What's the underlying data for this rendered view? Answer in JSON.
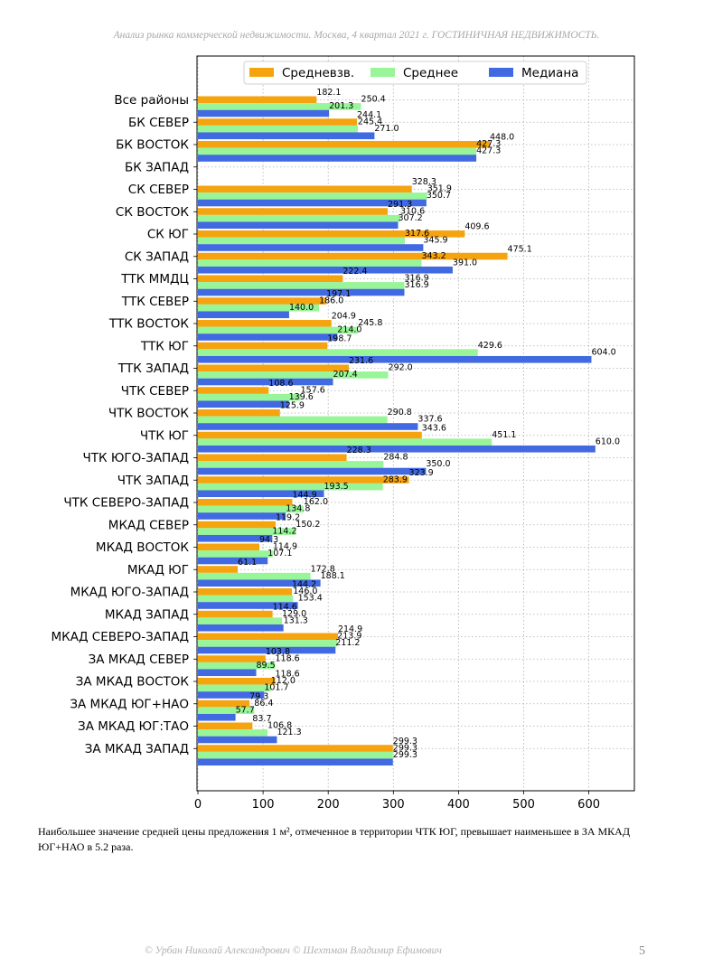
{
  "header": "Анализ рынка коммерческой недвижимости.   Москва, 4 квартал 2021 г.   ГОСТИНИЧНАЯ НЕДВИЖИМОСТЬ.",
  "caption": " Наибольшее значение средней цены предложения 1 м², отмеченное в территории ЧТК ЮГ, превышает наименьшее в ЗА МКАД ЮГ+НАО в 5.2 раза.",
  "footer": "© Урбан Николай Александрович  © Шехтман Владимир Ефимович",
  "page_number": "5",
  "chart_data": {
    "type": "bar",
    "orientation": "horizontal",
    "xlim": [
      0,
      670
    ],
    "xticks": [
      0,
      100,
      200,
      300,
      400,
      500,
      600
    ],
    "grid": true,
    "legend_position": "top-center",
    "categories": [
      "Все районы",
      "БК СЕВЕР",
      "БК ВОСТОК",
      "БК ЗАПАД",
      "СК СЕВЕР",
      "СК ВОСТОК",
      "СК ЮГ",
      "СК ЗАПАД",
      "ТТК ММДЦ",
      "ТТК СЕВЕР",
      "ТТК ВОСТОК",
      "ТТК ЮГ",
      "ТТК ЗАПАД",
      "ЧТК СЕВЕР",
      "ЧТК ВОСТОК",
      "ЧТК ЮГ",
      "ЧТК ЮГО-ЗАПАД",
      "ЧТК ЗАПАД",
      "ЧТК СЕВЕРО-ЗАПАД",
      "МКАД СЕВЕР",
      "МКАД ВОСТОК",
      "МКАД ЮГ",
      "МКАД ЮГО-ЗАПАД",
      "МКАД ЗАПАД",
      "МКАД СЕВЕРО-ЗАПАД",
      "ЗА МКАД СЕВЕР",
      "ЗА МКАД ВОСТОК",
      "ЗА МКАД ЮГ+НАО",
      "ЗА МКАД ЮГ:ТАО",
      "ЗА МКАД ЗАПАД"
    ],
    "series": [
      {
        "name": "Средневзв.",
        "color": "#f5a30e",
        "values": [
          182.1,
          244.1,
          448.0,
          null,
          328.3,
          291.3,
          409.6,
          475.1,
          222.4,
          197.1,
          204.9,
          198.7,
          231.6,
          108.6,
          125.9,
          343.6,
          228.3,
          323.9,
          144.9,
          119.2,
          94.3,
          61.1,
          144.2,
          114.6,
          214.9,
          103.8,
          118.6,
          79.3,
          83.7,
          299.3
        ]
      },
      {
        "name": "Среднее",
        "color": "#98f598",
        "values": [
          250.4,
          245.4,
          427.3,
          null,
          351.9,
          310.6,
          317.6,
          343.2,
          316.9,
          186.0,
          245.8,
          429.6,
          292.0,
          157.6,
          290.8,
          451.1,
          284.8,
          283.9,
          162.0,
          150.2,
          114.9,
          172.8,
          146.0,
          129.0,
          213.9,
          118.6,
          112.0,
          86.4,
          106.8,
          299.3
        ]
      },
      {
        "name": "Медиана",
        "color": "#4169e1",
        "values": [
          201.3,
          271.0,
          427.3,
          null,
          350.7,
          307.2,
          345.9,
          391.0,
          316.9,
          140.0,
          214.0,
          604.0,
          207.4,
          139.6,
          337.6,
          610.0,
          350.0,
          193.5,
          134.8,
          114.2,
          107.1,
          188.1,
          153.4,
          131.3,
          211.2,
          89.5,
          101.7,
          57.7,
          121.3,
          299.3
        ]
      }
    ],
    "value_labels": [
      [
        "182.1",
        "250.4",
        "201.3"
      ],
      [
        "244.1",
        "245.4",
        "271.0"
      ],
      [
        "448.0",
        "427.3",
        "427.3"
      ],
      [
        "",
        "",
        ""
      ],
      [
        "328.3",
        "351.9",
        "350.7"
      ],
      [
        "291.3",
        "310.6",
        "307.2"
      ],
      [
        "409.6",
        "317.6",
        "345.9"
      ],
      [
        "475.1",
        "343.2",
        "391.0"
      ],
      [
        "222.4",
        "316.9",
        "316.9"
      ],
      [
        "197.1",
        "186.0",
        "140.0"
      ],
      [
        "204.9",
        "245.8",
        "214.0"
      ],
      [
        "198.7",
        "429.6",
        "604.0"
      ],
      [
        "231.6",
        "292.0",
        "207.4"
      ],
      [
        "108.6",
        "157.6",
        "139.6"
      ],
      [
        "125.9",
        "290.8",
        "337.6"
      ],
      [
        "343.6",
        "451.1",
        "610.0"
      ],
      [
        "228.3",
        "284.8",
        "350.0"
      ],
      [
        "323.9",
        "283.9",
        "193.5"
      ],
      [
        "144.9",
        "162.0",
        "134.8"
      ],
      [
        "119.2",
        "150.2",
        "114.2"
      ],
      [
        "94.3",
        "114.9",
        "107.1"
      ],
      [
        "61.1",
        "172.8",
        "188.1"
      ],
      [
        "144.2",
        "146.0",
        "153.4"
      ],
      [
        "114.6",
        "129.0",
        "131.3"
      ],
      [
        "214.9",
        "213.9",
        "211.2"
      ],
      [
        "103.8",
        "118.6",
        "89.5"
      ],
      [
        "118.6",
        "112.0",
        "101.7"
      ],
      [
        "79.3",
        "86.4",
        "57.7"
      ],
      [
        "83.7",
        "106.8",
        "121.3"
      ],
      [
        "299.3",
        "299.3",
        "299.3"
      ]
    ]
  }
}
